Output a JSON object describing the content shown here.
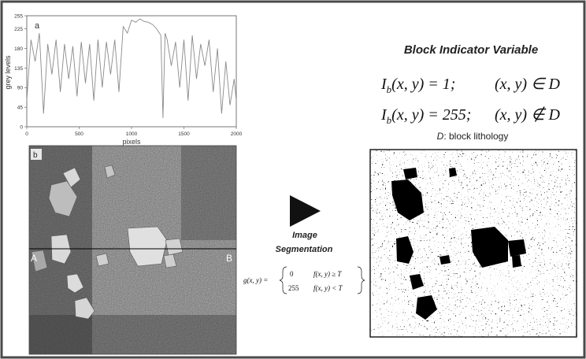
{
  "chart_data": {
    "type": "line",
    "panel_label": "a",
    "xlabel": "pixels",
    "ylabel": "grey levels",
    "xlim": [
      0,
      2000
    ],
    "ylim": [
      0,
      255
    ],
    "x_ticks": [
      0,
      500,
      1000,
      1500,
      2000
    ],
    "y_ticks": [
      0,
      45,
      90,
      135,
      180,
      225,
      255
    ],
    "series": [
      {
        "x": [
          0,
          40,
          80,
          120,
          160,
          200,
          240,
          280,
          320,
          360,
          400,
          440,
          480,
          520,
          560,
          600,
          640,
          680,
          720,
          760,
          800,
          840,
          880,
          920,
          960,
          1000,
          1040,
          1080,
          1120,
          1160,
          1200,
          1240,
          1280,
          1300,
          1320,
          1340,
          1380,
          1420,
          1460,
          1500,
          1540,
          1580,
          1620,
          1660,
          1700,
          1740,
          1780,
          1820,
          1860,
          1900,
          1940,
          1980,
          2000
        ],
        "y": [
          60,
          200,
          150,
          215,
          30,
          190,
          120,
          200,
          80,
          190,
          110,
          185,
          70,
          195,
          100,
          190,
          60,
          200,
          90,
          195,
          120,
          200,
          80,
          230,
          215,
          245,
          240,
          248,
          242,
          240,
          235,
          225,
          210,
          20,
          215,
          200,
          140,
          195,
          90,
          200,
          60,
          210,
          110,
          190,
          140,
          200,
          80,
          180,
          30,
          150,
          50,
          110,
          60
        ]
      }
    ]
  },
  "photo": {
    "panel_label": "b",
    "transect_start": "A",
    "transect_end": "B"
  },
  "process": {
    "label_line1": "Image",
    "label_line2": "Segmentation",
    "formula_lhs": "g(x, y) =",
    "case1_value": "0",
    "case1_condition": "f(x, y) ≥ T",
    "case2_value": "255",
    "case2_condition": "f(x, y) < T"
  },
  "indicator": {
    "title": "Block Indicator Variable",
    "eq1_lhs": "I",
    "eq1_sub": "b",
    "eq1_args": "(x, y) = 1;",
    "eq1_cond": "(x, y) ∈ D",
    "eq2_lhs": "I",
    "eq2_sub": "b",
    "eq2_args": "(x, y) = 255;",
    "eq2_cond": "(x, y) ∉ D",
    "note_symbol": "D",
    "note_text": ": block lithology"
  }
}
